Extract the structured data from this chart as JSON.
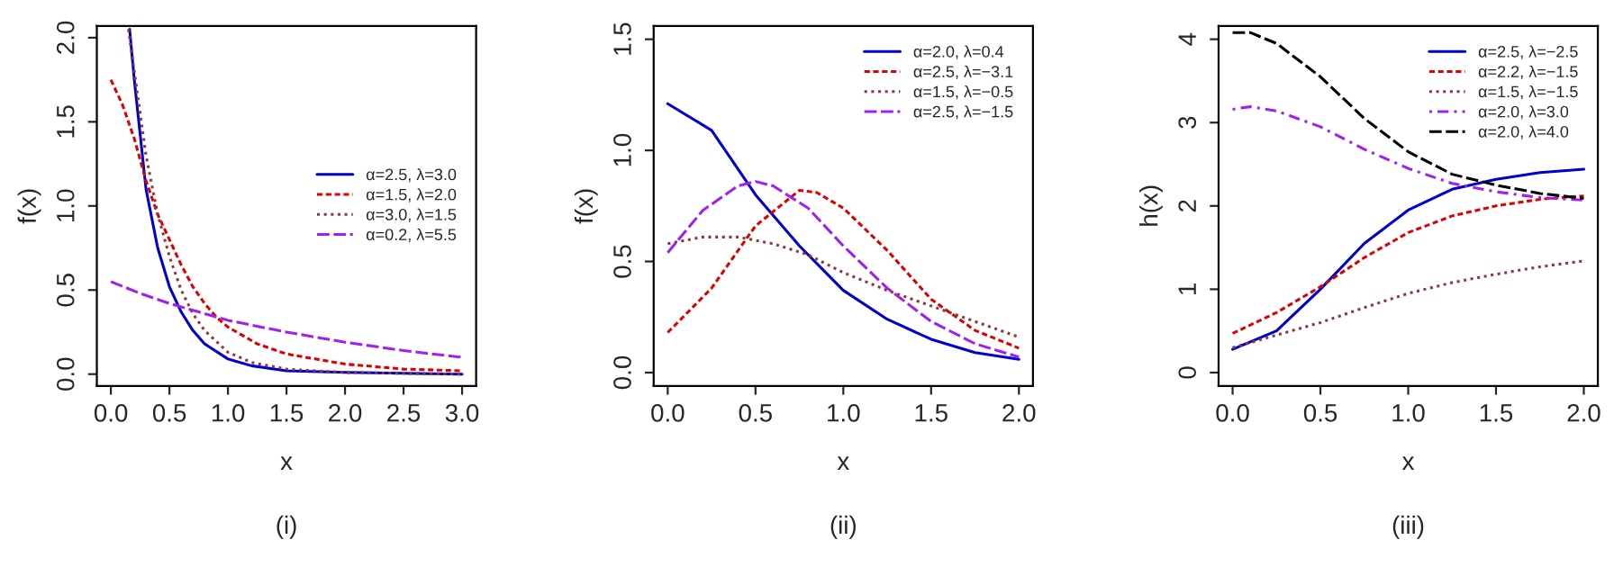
{
  "chart_data": [
    {
      "type": "line",
      "xlabel": "x",
      "ylabel": "f(x)",
      "annotations": [
        "(i)"
      ],
      "xlim": [
        -0.12,
        3.12
      ],
      "ylim": [
        -0.07,
        2.07
      ],
      "xticks": [
        {
          "value": 0,
          "label": "0.0"
        },
        0.5,
        {
          "value": 1,
          "label": "1.0"
        },
        1.5,
        {
          "value": 2,
          "label": "2.0"
        },
        2.5,
        {
          "value": 3,
          "label": "3.0"
        }
      ],
      "yticks": [
        {
          "value": 0,
          "label": "0.0"
        },
        0.5,
        {
          "value": 1,
          "label": "1.0"
        },
        1.5,
        {
          "value": 2,
          "label": "2.0"
        }
      ],
      "legend": "right",
      "grid": false,
      "series": [
        {
          "name": "α=2.5, λ=3.0",
          "color": "#0000cd",
          "line_style": "solid",
          "x": [
            0.16,
            0.2,
            0.3,
            0.4,
            0.5,
            0.6,
            0.7,
            0.8,
            1.0,
            1.2,
            1.5,
            2.0,
            3.0
          ],
          "values": [
            2.05,
            1.75,
            1.1,
            0.75,
            0.52,
            0.37,
            0.26,
            0.18,
            0.09,
            0.05,
            0.02,
            0.01,
            0.0
          ]
        },
        {
          "name": "α=1.5, λ=2.0",
          "color": "#dd0000",
          "line_style": "dashed",
          "x": [
            0,
            0.1,
            0.2,
            0.3,
            0.4,
            0.5,
            0.6,
            0.7,
            0.8,
            0.9,
            1.0,
            1.25,
            1.5,
            2.0,
            2.5,
            3.0
          ],
          "values": [
            1.75,
            1.6,
            1.4,
            1.15,
            0.95,
            0.8,
            0.65,
            0.52,
            0.42,
            0.34,
            0.28,
            0.18,
            0.12,
            0.06,
            0.03,
            0.02
          ]
        },
        {
          "name": "α=3.0, λ=1.5",
          "color": "#8b3a3a",
          "line_style": "dotted",
          "x": [
            0.15,
            0.2,
            0.3,
            0.4,
            0.5,
            0.6,
            0.7,
            0.8,
            1.0,
            1.2,
            1.5,
            2.0,
            3.0
          ],
          "values": [
            2.05,
            1.8,
            1.3,
            0.95,
            0.7,
            0.5,
            0.36,
            0.26,
            0.13,
            0.07,
            0.03,
            0.01,
            0.0
          ]
        },
        {
          "name": "α=0.2, λ=5.5",
          "color": "#a020f0",
          "line_style": "longdash",
          "x": [
            0,
            0.25,
            0.5,
            0.75,
            1.0,
            1.5,
            2.0,
            2.5,
            3.0
          ],
          "values": [
            0.55,
            0.48,
            0.42,
            0.37,
            0.32,
            0.25,
            0.19,
            0.14,
            0.1
          ]
        }
      ]
    },
    {
      "type": "line",
      "xlabel": "x",
      "ylabel": "f(x)",
      "annotations": [
        "(ii)"
      ],
      "xlim": [
        -0.08,
        2.08
      ],
      "ylim": [
        -0.06,
        1.56
      ],
      "xticks": [
        {
          "value": 0,
          "label": "0.0"
        },
        0.5,
        {
          "value": 1,
          "label": "1.0"
        },
        1.5,
        {
          "value": 2,
          "label": "2.0"
        }
      ],
      "yticks": [
        {
          "value": 0,
          "label": "0.0"
        },
        0.5,
        {
          "value": 1,
          "label": "1.0"
        },
        1.5
      ],
      "legend": "top right",
      "grid": false,
      "series": [
        {
          "name": "α=2.0, λ=0.4",
          "color": "#0000cd",
          "line_style": "solid",
          "x": [
            0,
            0.25,
            0.5,
            0.75,
            1.0,
            1.25,
            1.5,
            1.75,
            2.0
          ],
          "values": [
            1.21,
            1.09,
            0.8,
            0.57,
            0.37,
            0.24,
            0.15,
            0.09,
            0.06
          ]
        },
        {
          "name": "α=2.5, λ=−3.1",
          "color": "#dd0000",
          "line_style": "dashed",
          "x": [
            0,
            0.25,
            0.5,
            0.75,
            0.85,
            1.0,
            1.25,
            1.5,
            1.75,
            2.0
          ],
          "values": [
            0.18,
            0.38,
            0.66,
            0.82,
            0.81,
            0.74,
            0.55,
            0.33,
            0.19,
            0.11
          ]
        },
        {
          "name": "α=1.5, λ=−0.5",
          "color": "#8b3a3a",
          "line_style": "dotted",
          "x": [
            0,
            0.2,
            0.4,
            0.6,
            0.8,
            1.0,
            1.25,
            1.5,
            1.75,
            2.0
          ],
          "values": [
            0.58,
            0.61,
            0.61,
            0.58,
            0.53,
            0.45,
            0.37,
            0.3,
            0.23,
            0.16
          ]
        },
        {
          "name": "α=2.5, λ=−1.5",
          "color": "#a020f0",
          "line_style": "longdash",
          "x": [
            0,
            0.2,
            0.4,
            0.5,
            0.6,
            0.8,
            1.0,
            1.25,
            1.5,
            1.75,
            2.0
          ],
          "values": [
            0.54,
            0.73,
            0.84,
            0.86,
            0.84,
            0.74,
            0.57,
            0.38,
            0.23,
            0.13,
            0.07
          ]
        }
      ]
    },
    {
      "type": "line",
      "xlabel": "x",
      "ylabel": "h(x)",
      "annotations": [
        "(iii)"
      ],
      "xlim": [
        -0.08,
        2.08
      ],
      "ylim": [
        -0.16,
        4.16
      ],
      "xticks": [
        {
          "value": 0,
          "label": "0.0"
        },
        0.5,
        {
          "value": 1,
          "label": "1.0"
        },
        1.5,
        {
          "value": 2,
          "label": "2.0"
        }
      ],
      "yticks": [
        0,
        1,
        2,
        3,
        4
      ],
      "legend": "top right",
      "grid": false,
      "series": [
        {
          "name": "α=2.5, λ=−2.5",
          "color": "#0000cd",
          "line_style": "solid",
          "x": [
            0,
            0.25,
            0.5,
            0.75,
            1.0,
            1.25,
            1.5,
            1.75,
            2.0
          ],
          "values": [
            0.28,
            0.5,
            1.0,
            1.55,
            1.95,
            2.2,
            2.32,
            2.4,
            2.44
          ]
        },
        {
          "name": "α=2.2, λ=−1.5",
          "color": "#dd0000",
          "line_style": "dashed",
          "x": [
            0,
            0.25,
            0.5,
            0.75,
            1.0,
            1.25,
            1.5,
            1.75,
            2.0
          ],
          "values": [
            0.47,
            0.72,
            1.03,
            1.38,
            1.68,
            1.88,
            2.0,
            2.08,
            2.12
          ]
        },
        {
          "name": "α=1.5, λ=−1.5",
          "color": "#8b3a3a",
          "line_style": "dotted",
          "x": [
            0,
            0.25,
            0.5,
            0.75,
            1.0,
            1.25,
            1.5,
            1.75,
            2.0
          ],
          "values": [
            0.3,
            0.45,
            0.6,
            0.78,
            0.95,
            1.08,
            1.18,
            1.27,
            1.34
          ]
        },
        {
          "name": "α=2.0, λ=3.0",
          "color": "#a020f0",
          "line_style": "dashdot",
          "x": [
            0,
            0.1,
            0.25,
            0.5,
            0.75,
            1.0,
            1.25,
            1.5,
            1.75,
            2.0
          ],
          "values": [
            3.16,
            3.19,
            3.14,
            2.95,
            2.68,
            2.45,
            2.27,
            2.17,
            2.1,
            2.07
          ]
        },
        {
          "name": "α=2.0, λ=4.0",
          "color": "#000000",
          "line_style": "longdash",
          "x": [
            0,
            0.1,
            0.25,
            0.5,
            0.75,
            1.0,
            1.25,
            1.5,
            1.75,
            2.0
          ],
          "values": [
            4.08,
            4.08,
            3.95,
            3.55,
            3.05,
            2.65,
            2.38,
            2.25,
            2.15,
            2.09
          ]
        }
      ]
    }
  ]
}
